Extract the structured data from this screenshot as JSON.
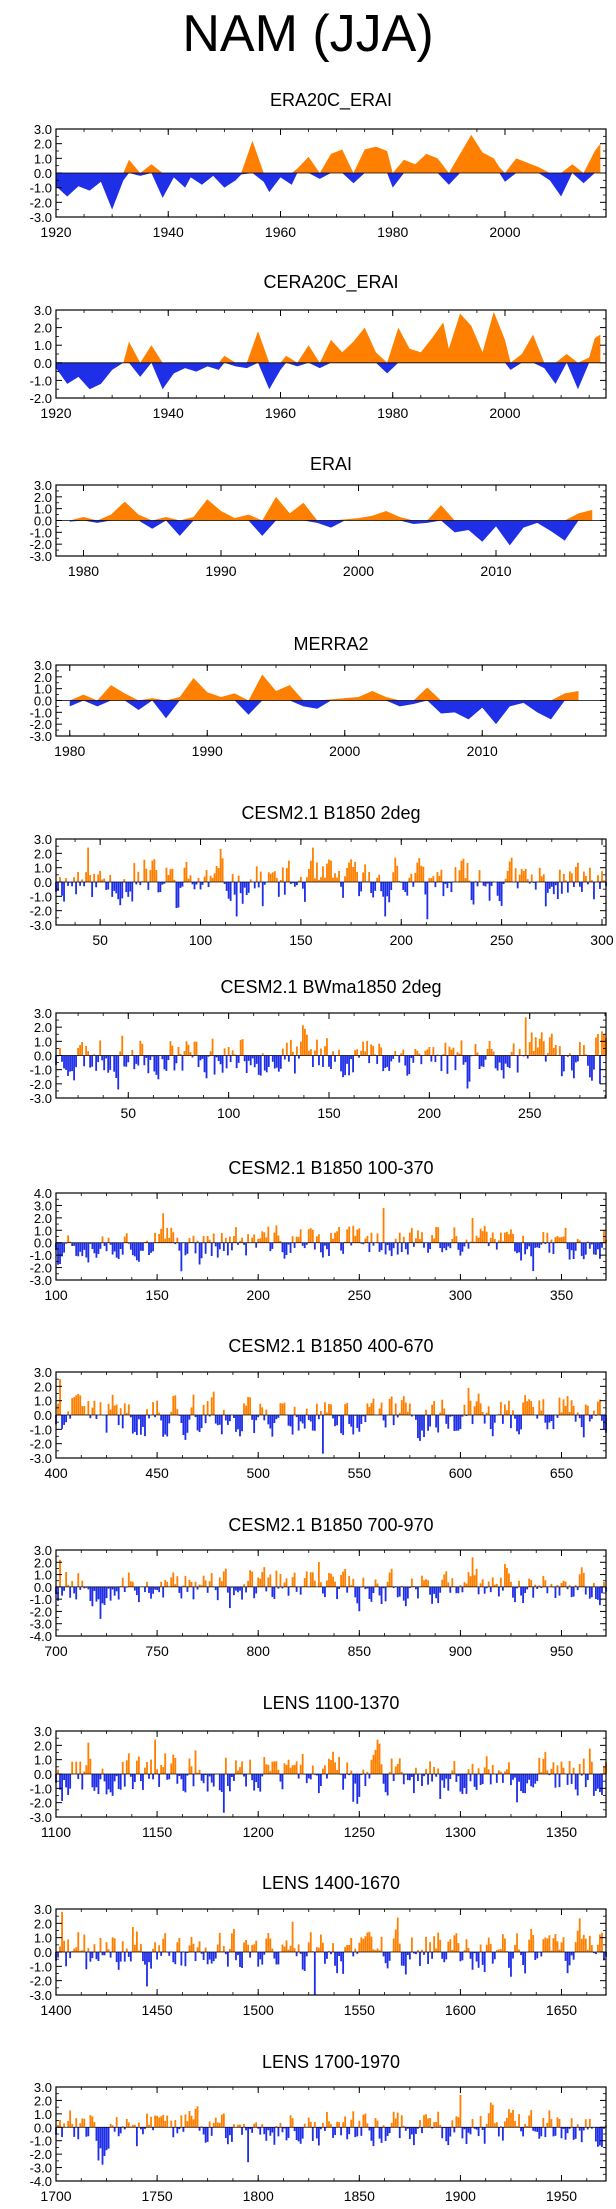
{
  "figure": {
    "title": "NAM (JJA)"
  },
  "colors": {
    "positive": "#ff8000",
    "negative": "#1f2fe8",
    "axis": "#000000"
  },
  "chart_data": [
    {
      "type": "area",
      "title": "ERA20C_ERAI",
      "xlim": [
        1920,
        2018
      ],
      "ylim": [
        -3.0,
        3.0
      ],
      "yticks": [
        "3.0",
        "2.0",
        "1.0",
        "0.0",
        "-1.0",
        "-2.0",
        "-3.0"
      ],
      "xticks": [
        1920,
        1940,
        1960,
        1980,
        2000
      ],
      "profile": [
        [
          1920,
          -0.9
        ],
        [
          1922,
          -1.6
        ],
        [
          1924,
          -0.9
        ],
        [
          1926,
          -1.2
        ],
        [
          1928,
          -0.6
        ],
        [
          1930,
          -2.5
        ],
        [
          1932,
          -0.5
        ],
        [
          1933,
          0.9
        ],
        [
          1935,
          -0.2
        ],
        [
          1937,
          0.6
        ],
        [
          1939,
          -1.7
        ],
        [
          1941,
          -0.3
        ],
        [
          1943,
          -1.0
        ],
        [
          1944,
          -0.3
        ],
        [
          1946,
          -0.8
        ],
        [
          1948,
          -0.2
        ],
        [
          1950,
          -1.0
        ],
        [
          1952,
          -0.5
        ],
        [
          1953,
          -0.1
        ],
        [
          1955,
          2.2
        ],
        [
          1957,
          -0.6
        ],
        [
          1958,
          -1.3
        ],
        [
          1960,
          -0.3
        ],
        [
          1962,
          -0.8
        ],
        [
          1963,
          0.3
        ],
        [
          1965,
          1.1
        ],
        [
          1967,
          -0.4
        ],
        [
          1969,
          1.3
        ],
        [
          1971,
          1.6
        ],
        [
          1973,
          -0.7
        ],
        [
          1975,
          1.6
        ],
        [
          1977,
          1.8
        ],
        [
          1979,
          1.5
        ],
        [
          1980,
          -1.0
        ],
        [
          1982,
          0.9
        ],
        [
          1984,
          0.6
        ],
        [
          1986,
          1.3
        ],
        [
          1988,
          1.0
        ],
        [
          1990,
          -0.8
        ],
        [
          1992,
          1.3
        ],
        [
          1994,
          2.6
        ],
        [
          1996,
          1.4
        ],
        [
          1998,
          1.0
        ],
        [
          1999,
          0.4
        ],
        [
          2000,
          -0.6
        ],
        [
          2002,
          1.0
        ],
        [
          2004,
          0.7
        ],
        [
          2006,
          0.4
        ],
        [
          2008,
          -0.5
        ],
        [
          2010,
          -1.6
        ],
        [
          2012,
          0.6
        ],
        [
          2014,
          -0.7
        ],
        [
          2016,
          1.5
        ],
        [
          2017,
          2.0
        ]
      ]
    },
    {
      "type": "area",
      "title": "CERA20C_ERAI",
      "xlim": [
        1920,
        2018
      ],
      "ylim": [
        -2.0,
        3.0
      ],
      "yticks": [
        "3.0",
        "2.0",
        "1.0",
        "0.0",
        "-1.0",
        "-2.0"
      ],
      "xticks": [
        1920,
        1940,
        1960,
        1980,
        2000
      ],
      "profile": [
        [
          1920,
          -0.3
        ],
        [
          1922,
          -1.2
        ],
        [
          1924,
          -0.8
        ],
        [
          1926,
          -1.5
        ],
        [
          1928,
          -1.2
        ],
        [
          1930,
          -0.4
        ],
        [
          1932,
          0.0
        ],
        [
          1933,
          1.2
        ],
        [
          1935,
          -0.8
        ],
        [
          1937,
          1.0
        ],
        [
          1939,
          -1.5
        ],
        [
          1941,
          -0.6
        ],
        [
          1943,
          -0.3
        ],
        [
          1945,
          -0.5
        ],
        [
          1947,
          -0.2
        ],
        [
          1949,
          -0.4
        ],
        [
          1950,
          0.4
        ],
        [
          1952,
          -0.2
        ],
        [
          1954,
          -0.3
        ],
        [
          1956,
          1.8
        ],
        [
          1958,
          -1.5
        ],
        [
          1960,
          -0.4
        ],
        [
          1961,
          0.4
        ],
        [
          1963,
          -0.2
        ],
        [
          1965,
          1.0
        ],
        [
          1967,
          -0.3
        ],
        [
          1969,
          1.3
        ],
        [
          1971,
          0.6
        ],
        [
          1973,
          1.2
        ],
        [
          1975,
          2.0
        ],
        [
          1977,
          0.6
        ],
        [
          1979,
          -0.6
        ],
        [
          1981,
          2.0
        ],
        [
          1983,
          0.8
        ],
        [
          1985,
          0.6
        ],
        [
          1987,
          1.4
        ],
        [
          1989,
          2.3
        ],
        [
          1990,
          0.8
        ],
        [
          1992,
          2.8
        ],
        [
          1994,
          2.1
        ],
        [
          1996,
          0.6
        ],
        [
          1998,
          2.9
        ],
        [
          2000,
          1.3
        ],
        [
          2001,
          -0.4
        ],
        [
          2003,
          0.5
        ],
        [
          2005,
          1.6
        ],
        [
          2007,
          -0.3
        ],
        [
          2009,
          -1.2
        ],
        [
          2011,
          0.5
        ],
        [
          2013,
          -1.5
        ],
        [
          2015,
          0.3
        ],
        [
          2016,
          1.4
        ],
        [
          2017,
          1.6
        ]
      ]
    },
    {
      "type": "area",
      "title": "ERAI",
      "xlim": [
        1978,
        2018
      ],
      "ylim": [
        -3.0,
        3.0
      ],
      "yticks": [
        "3.0",
        "2.0",
        "1.0",
        "0.0",
        "-1.0",
        "-2.0",
        "-3.0"
      ],
      "xticks": [
        1980,
        1990,
        2000,
        2010
      ],
      "profile": [
        [
          1979,
          -0.1
        ],
        [
          1980,
          0.3
        ],
        [
          1981,
          -0.2
        ],
        [
          1982,
          0.5
        ],
        [
          1983,
          1.6
        ],
        [
          1984,
          0.5
        ],
        [
          1985,
          -0.7
        ],
        [
          1986,
          0.3
        ],
        [
          1987,
          -1.3
        ],
        [
          1988,
          0.3
        ],
        [
          1989,
          1.8
        ],
        [
          1990,
          0.8
        ],
        [
          1991,
          0.2
        ],
        [
          1992,
          0.5
        ],
        [
          1993,
          -1.3
        ],
        [
          1994,
          2.0
        ],
        [
          1995,
          0.6
        ],
        [
          1996,
          1.5
        ],
        [
          1997,
          -0.2
        ],
        [
          1998,
          -0.6
        ],
        [
          1999,
          0.1
        ],
        [
          2000,
          0.2
        ],
        [
          2001,
          0.4
        ],
        [
          2002,
          0.8
        ],
        [
          2003,
          0.3
        ],
        [
          2004,
          -0.3
        ],
        [
          2005,
          -0.2
        ],
        [
          2006,
          1.3
        ],
        [
          2007,
          -1.0
        ],
        [
          2008,
          -0.8
        ],
        [
          2009,
          -1.8
        ],
        [
          2010,
          -0.5
        ],
        [
          2011,
          -2.1
        ],
        [
          2012,
          -0.6
        ],
        [
          2013,
          -0.2
        ],
        [
          2014,
          -0.9
        ],
        [
          2015,
          -1.7
        ],
        [
          2016,
          0.6
        ],
        [
          2017,
          0.9
        ]
      ]
    },
    {
      "type": "area",
      "title": "MERRA2",
      "xlim": [
        1979,
        2019
      ],
      "ylim": [
        -3.0,
        3.0
      ],
      "yticks": [
        "3.0",
        "2.0",
        "1.0",
        "0.0",
        "-1.0",
        "-2.0",
        "-3.0"
      ],
      "xticks": [
        1980,
        1990,
        2000,
        2010
      ],
      "profile": [
        [
          1980,
          -0.5
        ],
        [
          1981,
          0.5
        ],
        [
          1982,
          -0.5
        ],
        [
          1983,
          1.3
        ],
        [
          1984,
          0.6
        ],
        [
          1985,
          -0.8
        ],
        [
          1986,
          0.2
        ],
        [
          1987,
          -1.5
        ],
        [
          1988,
          0.3
        ],
        [
          1989,
          1.9
        ],
        [
          1990,
          0.7
        ],
        [
          1991,
          0.3
        ],
        [
          1992,
          0.6
        ],
        [
          1993,
          -1.2
        ],
        [
          1994,
          2.2
        ],
        [
          1995,
          0.8
        ],
        [
          1996,
          1.3
        ],
        [
          1997,
          -0.5
        ],
        [
          1998,
          -0.7
        ],
        [
          1999,
          0.1
        ],
        [
          2000,
          0.2
        ],
        [
          2001,
          0.3
        ],
        [
          2002,
          0.8
        ],
        [
          2003,
          0.3
        ],
        [
          2004,
          -0.5
        ],
        [
          2005,
          -0.3
        ],
        [
          2006,
          1.1
        ],
        [
          2007,
          -1.1
        ],
        [
          2008,
          -1.0
        ],
        [
          2009,
          -1.6
        ],
        [
          2010,
          -0.6
        ],
        [
          2011,
          -2.0
        ],
        [
          2012,
          -0.5
        ],
        [
          2013,
          -0.2
        ],
        [
          2014,
          -1.0
        ],
        [
          2015,
          -1.6
        ],
        [
          2016,
          0.6
        ],
        [
          2017,
          0.8
        ]
      ]
    },
    {
      "type": "area",
      "title": "CESM2.1 B1850 2deg",
      "xlim": [
        28,
        302
      ],
      "ylim": [
        -3.0,
        3.0
      ],
      "yticks": [
        "3.0",
        "2.0",
        "1.0",
        "0.0",
        "-1.0",
        "-2.0",
        "-3.0"
      ],
      "xticks": [
        50,
        100,
        150,
        200,
        250,
        300
      ],
      "seed": 11,
      "amp": 1.3,
      "peaks": [
        [
          110,
          2.3
        ],
        [
          213,
          -2.6
        ]
      ]
    },
    {
      "type": "area",
      "title": "CESM2.1 BWma1850 2deg",
      "xlim": [
        14,
        288
      ],
      "ylim": [
        -3.0,
        3.0
      ],
      "yticks": [
        "3.0",
        "2.0",
        "1.0",
        "0.0",
        "-1.0",
        "-2.0",
        "-3.0"
      ],
      "xticks": [
        50,
        100,
        150,
        200,
        250
      ],
      "seed": 23,
      "amp": 1.3,
      "peaks": [
        [
          248,
          2.7
        ],
        [
          285,
          -2.0
        ]
      ]
    },
    {
      "type": "area",
      "title": "CESM2.1 B1850 100-370",
      "xlim": [
        100,
        372
      ],
      "ylim": [
        -3.0,
        4.0
      ],
      "yticks": [
        "4.0",
        "3.0",
        "2.0",
        "1.0",
        "0.0",
        "-1.0",
        "-2.0",
        "-3.0"
      ],
      "xticks": [
        100,
        150,
        200,
        250,
        300,
        350
      ],
      "seed": 37,
      "amp": 1.2,
      "peaks": [
        [
          262,
          2.8
        ],
        [
          162,
          -2.3
        ]
      ]
    },
    {
      "type": "area",
      "title": "CESM2.1 B1850 400-670",
      "xlim": [
        400,
        672
      ],
      "ylim": [
        -3.0,
        3.0
      ],
      "yticks": [
        "3.0",
        "2.0",
        "1.0",
        "0.0",
        "-1.0",
        "-2.0",
        "-3.0"
      ],
      "xticks": [
        400,
        450,
        500,
        550,
        600,
        650
      ],
      "seed": 41,
      "amp": 1.3,
      "peaks": [
        [
          402,
          2.5
        ],
        [
          532,
          -2.7
        ]
      ]
    },
    {
      "type": "area",
      "title": "CESM2.1 B1850 700-970",
      "xlim": [
        700,
        972
      ],
      "ylim": [
        -4.0,
        3.0
      ],
      "yticks": [
        "3.0",
        "2.0",
        "1.0",
        "0.0",
        "-1.0",
        "-2.0",
        "-3.0",
        "-4.0"
      ],
      "xticks": [
        700,
        750,
        800,
        850,
        900,
        950
      ],
      "seed": 53,
      "amp": 1.2,
      "peaks": [
        [
          722,
          -2.6
        ],
        [
          702,
          2.2
        ]
      ]
    },
    {
      "type": "area",
      "title": "LENS 1100-1370",
      "xlim": [
        1100,
        1372
      ],
      "ylim": [
        -3.0,
        3.0
      ],
      "yticks": [
        "3.0",
        "2.0",
        "1.0",
        "0.0",
        "-1.0",
        "-2.0",
        "-3.0"
      ],
      "xticks": [
        1100,
        1150,
        1200,
        1250,
        1300,
        1350
      ],
      "seed": 67,
      "amp": 1.3,
      "peaks": [
        [
          1183,
          -2.7
        ],
        [
          1149,
          2.4
        ]
      ]
    },
    {
      "type": "area",
      "title": "LENS 1400-1670",
      "xlim": [
        1400,
        1672
      ],
      "ylim": [
        -3.0,
        3.0
      ],
      "yticks": [
        "3.0",
        "2.0",
        "1.0",
        "0.0",
        "-1.0",
        "-2.0",
        "-3.0"
      ],
      "xticks": [
        1400,
        1450,
        1500,
        1550,
        1600,
        1650
      ],
      "seed": 71,
      "amp": 1.3,
      "peaks": [
        [
          1403,
          2.8
        ],
        [
          1528,
          -3.0
        ]
      ]
    },
    {
      "type": "area",
      "title": "LENS 1700-1970",
      "xlim": [
        1700,
        1972
      ],
      "ylim": [
        -4.0,
        3.0
      ],
      "yticks": [
        "3.0",
        "2.0",
        "1.0",
        "0.0",
        "-1.0",
        "-2.0",
        "-3.0",
        "-4.0"
      ],
      "xticks": [
        1700,
        1750,
        1800,
        1850,
        1900,
        1950
      ],
      "seed": 83,
      "amp": 1.2,
      "peaks": [
        [
          1900,
          2.4
        ],
        [
          1795,
          -2.6
        ]
      ]
    }
  ]
}
